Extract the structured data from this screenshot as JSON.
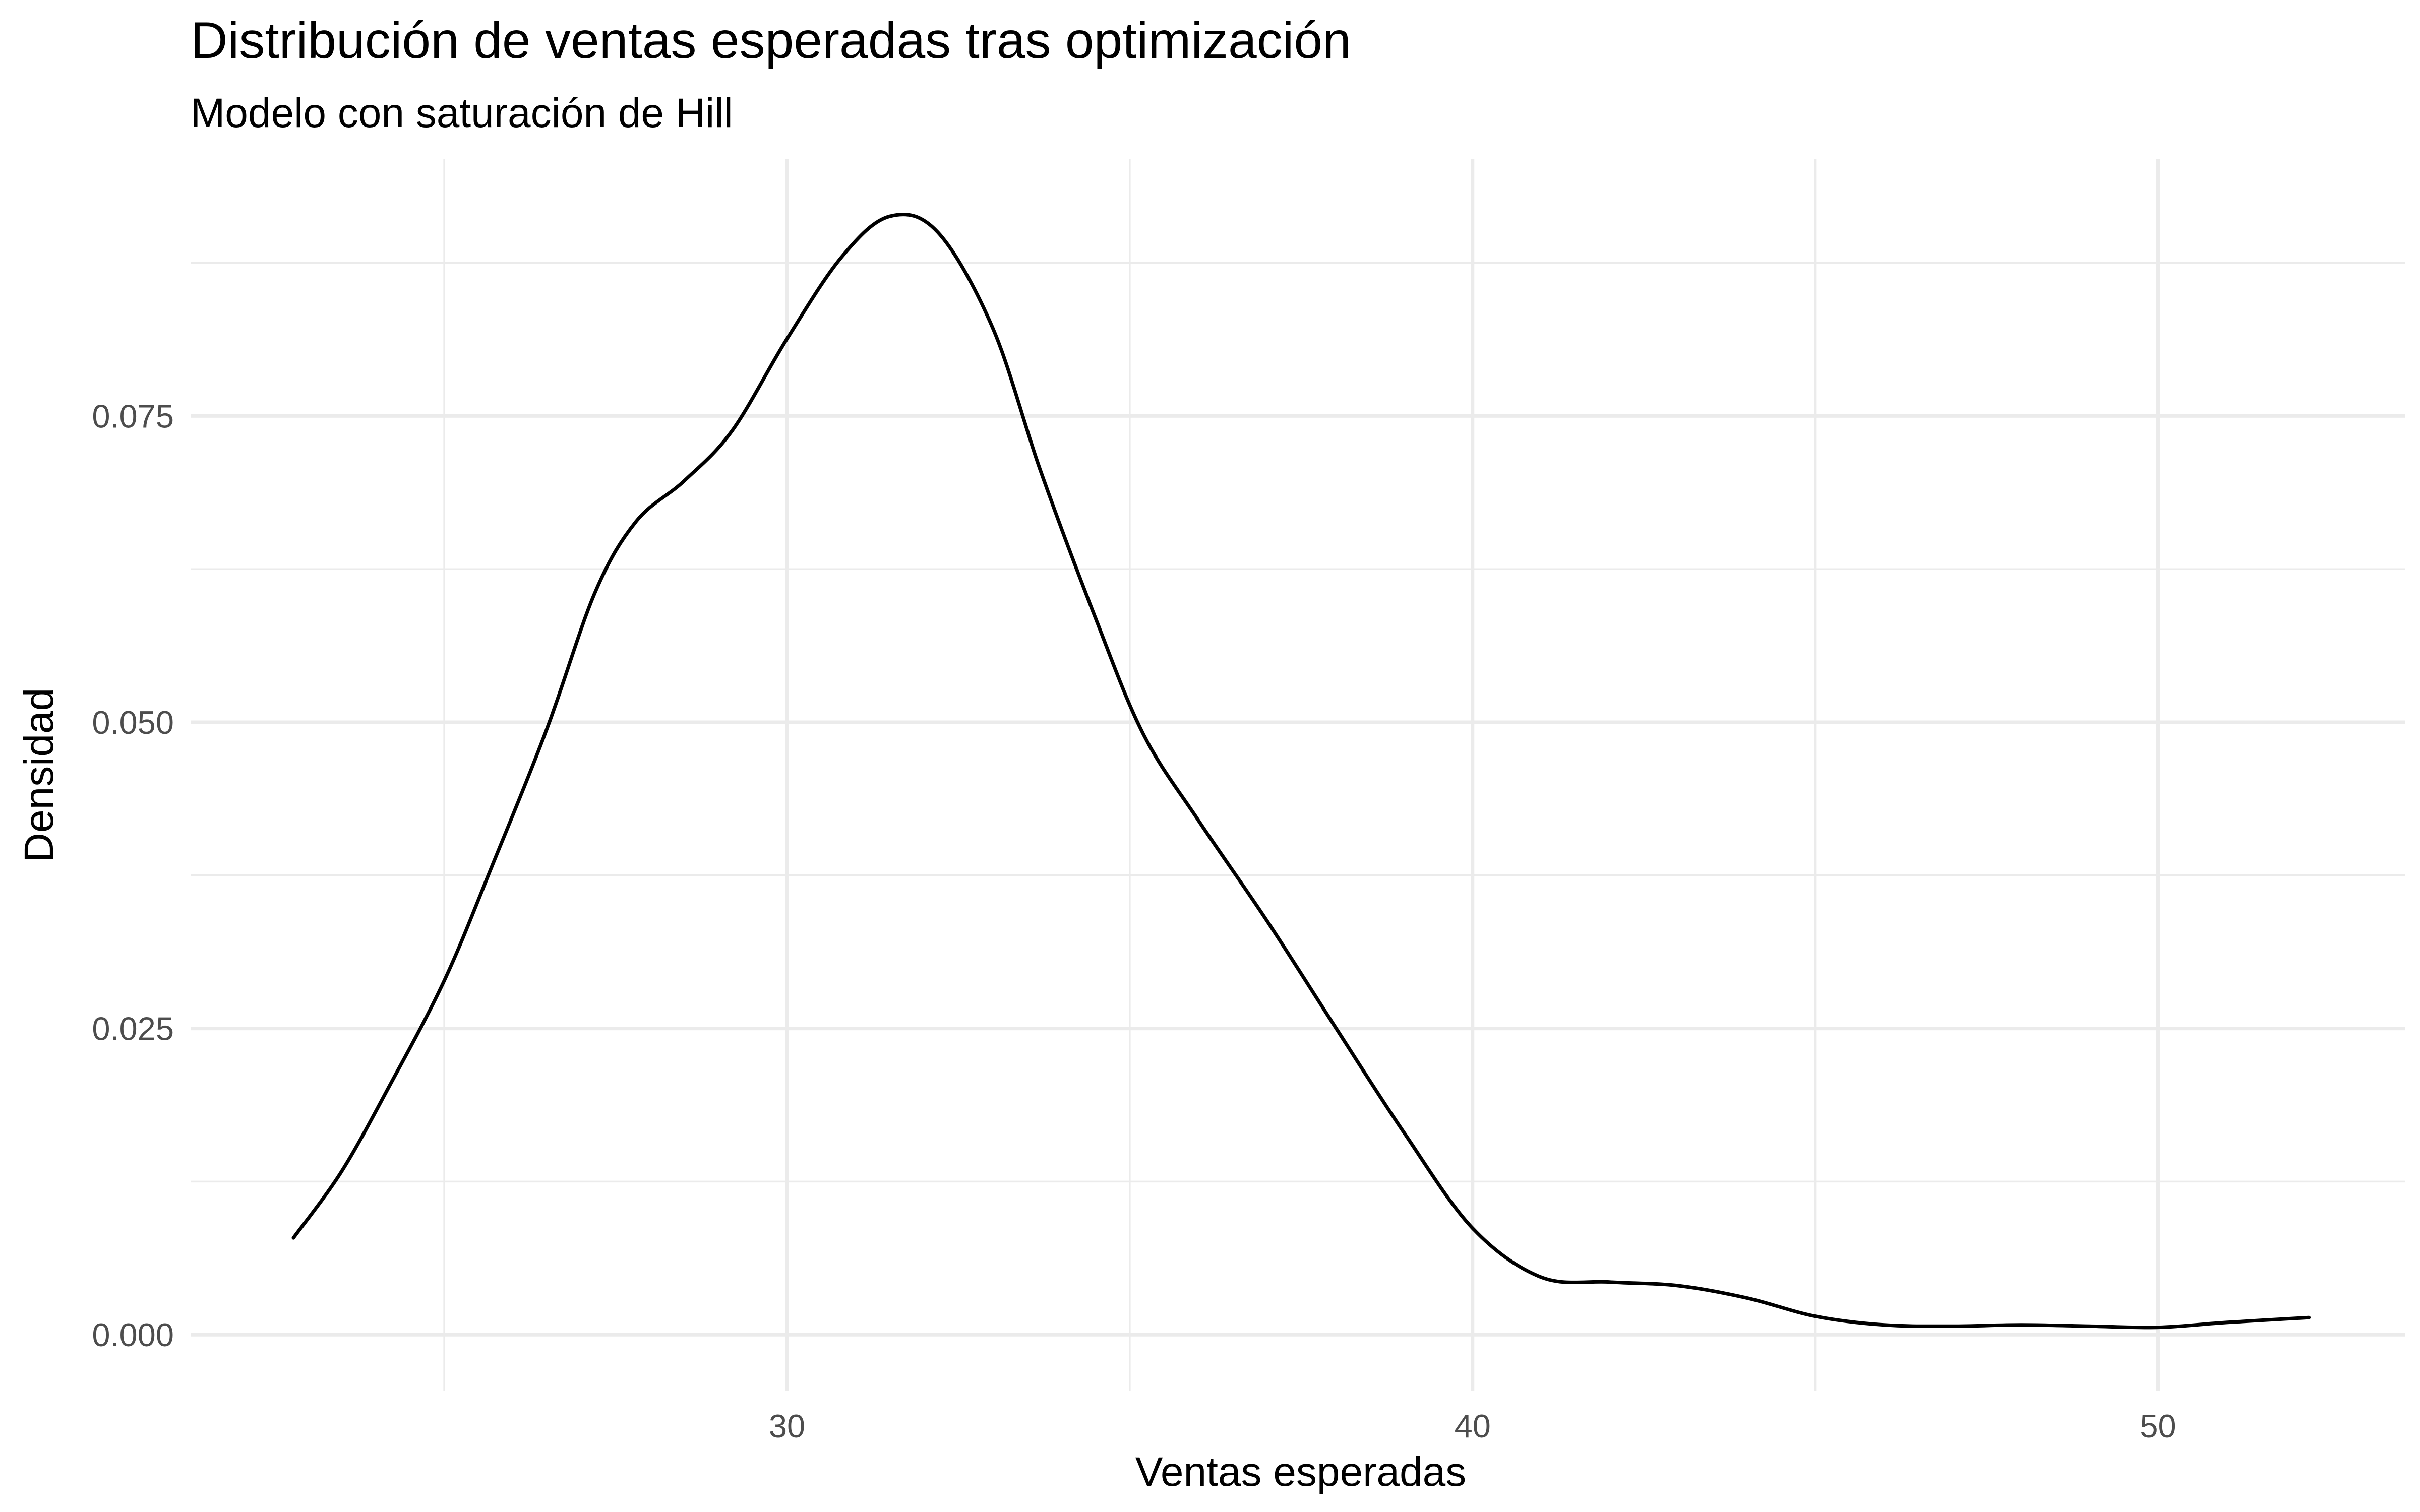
{
  "chart_data": {
    "type": "line",
    "title": "Distribución de ventas esperadas tras optimización",
    "subtitle": "Modelo con saturación de Hill",
    "xlabel": "Ventas esperadas",
    "ylabel": "Densidad",
    "xlim": [
      21.3,
      53.6
    ],
    "ylim": [
      -0.0046,
      0.096
    ],
    "x_ticks": [
      30,
      40,
      50
    ],
    "x_tick_labels": [
      "30",
      "40",
      "50"
    ],
    "x_minor_ticks": [
      25,
      35,
      45
    ],
    "y_ticks": [
      0.0,
      0.025,
      0.05,
      0.075
    ],
    "y_tick_labels": [
      "0.000",
      "0.025",
      "0.050",
      "0.075"
    ],
    "y_minor_ticks": [
      0.0125,
      0.0375,
      0.0625,
      0.0875
    ],
    "grid": true,
    "legend": "none",
    "series": [
      {
        "color": "#000000",
        "x": [
          22.8,
          23.5,
          24.2,
          25.0,
          25.7,
          26.5,
          27.2,
          27.8,
          28.5,
          29.2,
          30.0,
          30.8,
          31.5,
          32.2,
          33.0,
          33.7,
          34.5,
          35.2,
          36.0,
          37.0,
          38.0,
          39.0,
          40.0,
          41.0,
          42.0,
          43.0,
          44.0,
          45.0,
          46.0,
          47.0,
          48.0,
          49.0,
          50.0,
          51.0,
          52.2
        ],
        "y": [
          0.0079,
          0.0133,
          0.0203,
          0.0289,
          0.0383,
          0.0495,
          0.0606,
          0.0664,
          0.0697,
          0.0738,
          0.0813,
          0.088,
          0.0913,
          0.09,
          0.0822,
          0.0705,
          0.0585,
          0.049,
          0.042,
          0.0338,
          0.0251,
          0.0165,
          0.0087,
          0.0047,
          0.0043,
          0.004,
          0.003,
          0.0015,
          0.0008,
          0.0007,
          0.0008,
          0.0007,
          0.0006,
          0.001,
          0.0014
        ]
      }
    ]
  }
}
